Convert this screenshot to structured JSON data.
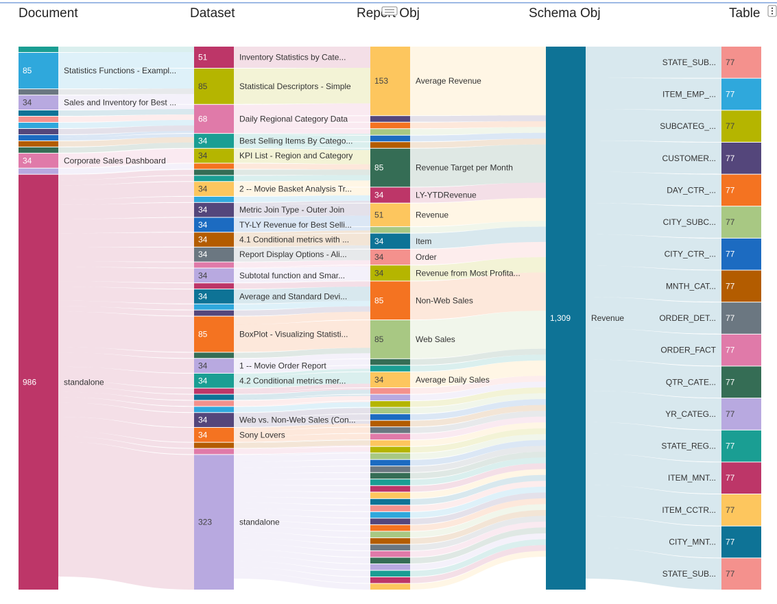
{
  "colors": {
    "teal": "#1a9e93",
    "sky": "#2fa8dc",
    "slate": "#6b7781",
    "lavender": "#b8a9e0",
    "pink": "#e07aa9",
    "salmon": "#f4918d",
    "orange": "#f47321",
    "brown": "#b35c00",
    "navy": "#0e7396",
    "blue": "#1c6bc1",
    "purple": "#54467b",
    "olive": "#b5b500",
    "sage": "#a8c883",
    "green": "#356d55",
    "crimson": "#bd3668",
    "gold": "#fdc65e"
  },
  "palette": [
    "#1a9e93",
    "#2fa8dc",
    "#6b7781",
    "#b8a9e0",
    "#54467b",
    "#e07aa9",
    "#f4918d",
    "#fdc65e",
    "#356d55",
    "#1c6bc1",
    "#b35c00",
    "#b5b500",
    "#0e7396",
    "#a8c883",
    "#f47321",
    "#bd3668"
  ],
  "chart_data": {
    "type": "sankey",
    "columns": [
      "Document",
      "Dataset",
      "Report Obj",
      "Schema Obj",
      "Table"
    ],
    "nodes": [
      {
        "column": 0,
        "name": "",
        "value": 13,
        "color": "teal"
      },
      {
        "column": 0,
        "name": "Statistics Functions - Exampl...",
        "value": 85,
        "color": "sky"
      },
      {
        "column": 0,
        "name": "",
        "value": 13,
        "color": "slate"
      },
      {
        "column": 0,
        "name": "Sales and Inventory for Best ...",
        "value": 34,
        "color": "lavender"
      },
      {
        "column": 0,
        "name": "",
        "value": 13,
        "color": "navy"
      },
      {
        "column": 0,
        "name": "",
        "value": 13,
        "color": "salmon"
      },
      {
        "column": 0,
        "name": "",
        "value": 13,
        "color": "sky"
      },
      {
        "column": 0,
        "name": "",
        "value": 13,
        "color": "purple"
      },
      {
        "column": 0,
        "name": "",
        "value": 13,
        "color": "blue"
      },
      {
        "column": 0,
        "name": "",
        "value": 13,
        "color": "brown"
      },
      {
        "column": 0,
        "name": "",
        "value": 13,
        "color": "green"
      },
      {
        "column": 0,
        "name": "Corporate Sales Dashboard",
        "value": 34,
        "color": "pink"
      },
      {
        "column": 0,
        "name": "",
        "value": 13,
        "color": "lavender"
      },
      {
        "column": 0,
        "name": "standalone",
        "value": 986,
        "color": "crimson"
      },
      {
        "column": 1,
        "name": "Inventory Statistics by Cate...",
        "value": 51,
        "color": "crimson"
      },
      {
        "column": 1,
        "name": "Statistical Descriptors - Simple",
        "value": 85,
        "color": "olive"
      },
      {
        "column": 1,
        "name": "Daily Regional Category Data",
        "value": 68,
        "color": "pink"
      },
      {
        "column": 1,
        "name": "Best Selling Items By Catego...",
        "value": 34,
        "color": "teal"
      },
      {
        "column": 1,
        "name": "KPI List - Region and Category",
        "value": 34,
        "color": "olive"
      },
      {
        "column": 1,
        "name": "",
        "value": 13,
        "color": "orange"
      },
      {
        "column": 1,
        "name": "",
        "value": 13,
        "color": "green"
      },
      {
        "column": 1,
        "name": "",
        "value": 13,
        "color": "teal"
      },
      {
        "column": 1,
        "name": "2 -- Movie Basket Analysis Tr...",
        "value": 34,
        "color": "gold"
      },
      {
        "column": 1,
        "name": "",
        "value": 13,
        "color": "sky"
      },
      {
        "column": 1,
        "name": "Metric Join Type - Outer Join",
        "value": 34,
        "color": "purple"
      },
      {
        "column": 1,
        "name": "TY-LY Revenue for Best Selli...",
        "value": 34,
        "color": "blue"
      },
      {
        "column": 1,
        "name": "4.1 Conditional metrics with ...",
        "value": 34,
        "color": "brown"
      },
      {
        "column": 1,
        "name": "Report Display Options - Ali...",
        "value": 34,
        "color": "slate"
      },
      {
        "column": 1,
        "name": "",
        "value": 13,
        "color": "pink"
      },
      {
        "column": 1,
        "name": "Subtotal function and Smar...",
        "value": 34,
        "color": "lavender"
      },
      {
        "column": 1,
        "name": "",
        "value": 13,
        "color": "crimson"
      },
      {
        "column": 1,
        "name": "Average and Standard Devi...",
        "value": 34,
        "color": "navy"
      },
      {
        "column": 1,
        "name": "",
        "value": 13,
        "color": "sky"
      },
      {
        "column": 1,
        "name": "",
        "value": 13,
        "color": "purple"
      },
      {
        "column": 1,
        "name": "BoxPlot - Visualizing Statisti...",
        "value": 85,
        "color": "orange"
      },
      {
        "column": 1,
        "name": "",
        "value": 13,
        "color": "green"
      },
      {
        "column": 1,
        "name": "1 -- Movie Order Report",
        "value": 34,
        "color": "lavender"
      },
      {
        "column": 1,
        "name": "4.2 Conditional metrics mer...",
        "value": 34,
        "color": "teal"
      },
      {
        "column": 1,
        "name": "",
        "value": 13,
        "color": "crimson"
      },
      {
        "column": 1,
        "name": "",
        "value": 13,
        "color": "navy"
      },
      {
        "column": 1,
        "name": "",
        "value": 13,
        "color": "salmon"
      },
      {
        "column": 1,
        "name": "",
        "value": 13,
        "color": "sky"
      },
      {
        "column": 1,
        "name": "Web vs. Non-Web Sales (Con...",
        "value": 34,
        "color": "purple"
      },
      {
        "column": 1,
        "name": "Sony Lovers",
        "value": 34,
        "color": "orange"
      },
      {
        "column": 1,
        "name": "",
        "value": 13,
        "color": "brown"
      },
      {
        "column": 1,
        "name": "",
        "value": 13,
        "color": "pink"
      },
      {
        "column": 1,
        "name": "standalone",
        "value": 323,
        "color": "lavender"
      },
      {
        "column": 2,
        "name": "Average Revenue",
        "value": 153,
        "color": "gold"
      },
      {
        "column": 2,
        "name": "",
        "value": 13,
        "color": "purple"
      },
      {
        "column": 2,
        "name": "",
        "value": 13,
        "color": "orange"
      },
      {
        "column": 2,
        "name": "",
        "value": 13,
        "color": "sage"
      },
      {
        "column": 2,
        "name": "",
        "value": 13,
        "color": "blue"
      },
      {
        "column": 2,
        "name": "",
        "value": 13,
        "color": "brown"
      },
      {
        "column": 2,
        "name": "Revenue Target per Month",
        "value": 85,
        "color": "green"
      },
      {
        "column": 2,
        "name": "LY-YTDRevenue",
        "value": 34,
        "color": "crimson"
      },
      {
        "column": 2,
        "name": "Revenue",
        "value": 51,
        "color": "gold"
      },
      {
        "column": 2,
        "name": "",
        "value": 13,
        "color": "sage"
      },
      {
        "column": 2,
        "name": "Item",
        "value": 34,
        "color": "navy"
      },
      {
        "column": 2,
        "name": "Order",
        "value": 34,
        "color": "salmon"
      },
      {
        "column": 2,
        "name": "Revenue from Most Profita...",
        "value": 34,
        "color": "olive"
      },
      {
        "column": 2,
        "name": "Non-Web Sales",
        "value": 85,
        "color": "orange"
      },
      {
        "column": 2,
        "name": "Web Sales",
        "value": 85,
        "color": "sage"
      },
      {
        "column": 2,
        "name": "",
        "value": 13,
        "color": "green"
      },
      {
        "column": 2,
        "name": "",
        "value": 13,
        "color": "teal"
      },
      {
        "column": 2,
        "name": "Average Daily Sales",
        "value": 34,
        "color": "gold"
      },
      {
        "column": 2,
        "name": "",
        "value": 13,
        "color": "salmon"
      },
      {
        "column": 2,
        "name": "",
        "value": 13,
        "color": "lavender"
      },
      {
        "column": 2,
        "name": "",
        "value": 13,
        "color": "olive"
      },
      {
        "column": 2,
        "name": "",
        "value": 13,
        "color": "sage"
      },
      {
        "column": 2,
        "name": "",
        "value": 13,
        "color": "blue"
      },
      {
        "column": 2,
        "name": "",
        "value": 13,
        "color": "brown"
      },
      {
        "column": 2,
        "name": "",
        "value": 13,
        "color": "slate"
      },
      {
        "column": 2,
        "name": "",
        "value": 13,
        "color": "pink"
      },
      {
        "column": 2,
        "name": "",
        "value": 13,
        "color": "gold"
      },
      {
        "column": 2,
        "name": "",
        "value": 13,
        "color": "olive"
      },
      {
        "column": 2,
        "name": "",
        "value": 13,
        "color": "sage"
      },
      {
        "column": 2,
        "name": "",
        "value": 13,
        "color": "blue"
      },
      {
        "column": 2,
        "name": "",
        "value": 13,
        "color": "slate"
      },
      {
        "column": 2,
        "name": "",
        "value": 13,
        "color": "green"
      },
      {
        "column": 2,
        "name": "",
        "value": 13,
        "color": "teal"
      },
      {
        "column": 2,
        "name": "",
        "value": 13,
        "color": "crimson"
      },
      {
        "column": 2,
        "name": "",
        "value": 13,
        "color": "gold"
      },
      {
        "column": 2,
        "name": "",
        "value": 13,
        "color": "navy"
      },
      {
        "column": 2,
        "name": "",
        "value": 13,
        "color": "salmon"
      },
      {
        "column": 2,
        "name": "",
        "value": 13,
        "color": "sky"
      },
      {
        "column": 2,
        "name": "",
        "value": 13,
        "color": "purple"
      },
      {
        "column": 2,
        "name": "",
        "value": 13,
        "color": "orange"
      },
      {
        "column": 2,
        "name": "",
        "value": 13,
        "color": "sage"
      },
      {
        "column": 2,
        "name": "",
        "value": 13,
        "color": "brown"
      },
      {
        "column": 2,
        "name": "",
        "value": 13,
        "color": "slate"
      },
      {
        "column": 2,
        "name": "",
        "value": 13,
        "color": "pink"
      },
      {
        "column": 2,
        "name": "",
        "value": 13,
        "color": "green"
      },
      {
        "column": 2,
        "name": "",
        "value": 13,
        "color": "lavender"
      },
      {
        "column": 2,
        "name": "",
        "value": 13,
        "color": "teal"
      },
      {
        "column": 2,
        "name": "",
        "value": 13,
        "color": "crimson"
      },
      {
        "column": 2,
        "name": "",
        "value": 13,
        "color": "gold"
      },
      {
        "column": 3,
        "name": "Revenue",
        "value": 1309,
        "color": "navy"
      },
      {
        "column": 4,
        "name": "STATE_SUB...",
        "value": 77,
        "color": "salmon"
      },
      {
        "column": 4,
        "name": "ITEM_EMP_...",
        "value": 77,
        "color": "sky"
      },
      {
        "column": 4,
        "name": "SUBCATEG_...",
        "value": 77,
        "color": "olive"
      },
      {
        "column": 4,
        "name": "CUSTOMER...",
        "value": 77,
        "color": "purple"
      },
      {
        "column": 4,
        "name": "DAY_CTR_...",
        "value": 77,
        "color": "orange"
      },
      {
        "column": 4,
        "name": "CITY_SUBC...",
        "value": 77,
        "color": "sage"
      },
      {
        "column": 4,
        "name": "CITY_CTR_...",
        "value": 77,
        "color": "blue"
      },
      {
        "column": 4,
        "name": "MNTH_CAT...",
        "value": 77,
        "color": "brown"
      },
      {
        "column": 4,
        "name": "ORDER_DET...",
        "value": 77,
        "color": "slate"
      },
      {
        "column": 4,
        "name": "ORDER_FACT",
        "value": 77,
        "color": "pink"
      },
      {
        "column": 4,
        "name": "QTR_CATE...",
        "value": 77,
        "color": "green"
      },
      {
        "column": 4,
        "name": "YR_CATEG...",
        "value": 77,
        "color": "lavender"
      },
      {
        "column": 4,
        "name": "STATE_REG...",
        "value": 77,
        "color": "teal"
      },
      {
        "column": 4,
        "name": "ITEM_MNT...",
        "value": 77,
        "color": "crimson"
      },
      {
        "column": 4,
        "name": "ITEM_CCTR...",
        "value": 77,
        "color": "gold"
      },
      {
        "column": 4,
        "name": "CITY_MNT...",
        "value": 77,
        "color": "navy"
      },
      {
        "column": 4,
        "name": "STATE_SUB...",
        "value": 77,
        "color": "salmon"
      }
    ]
  }
}
